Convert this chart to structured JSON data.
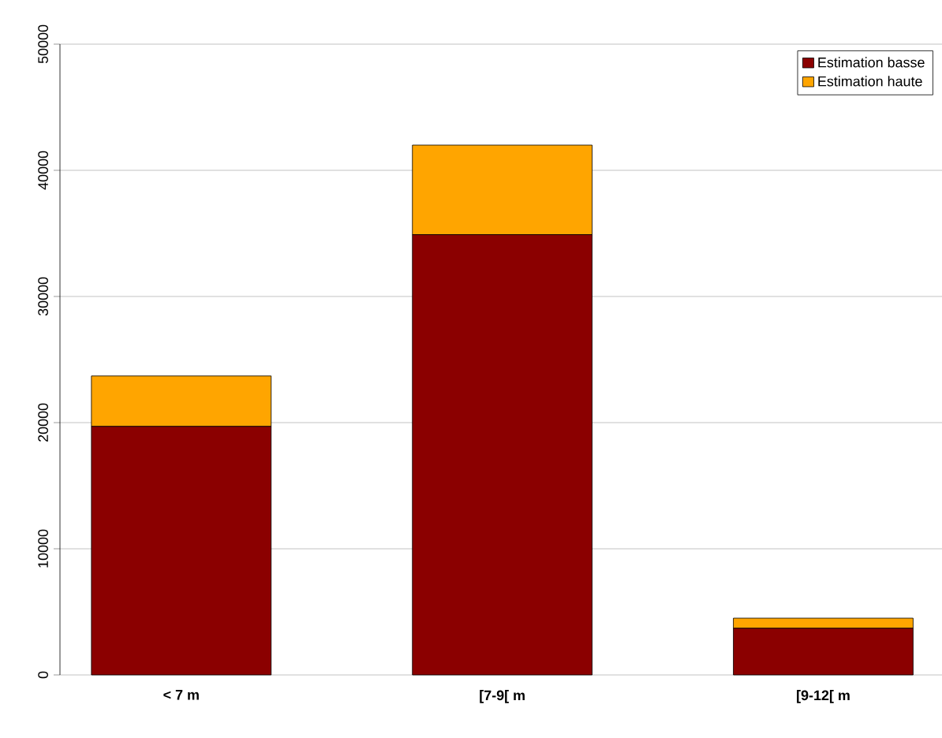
{
  "chart_data": {
    "type": "bar",
    "stacked": true,
    "categories": [
      "< 7 m",
      "[7-9[ m",
      "[9-12[ m"
    ],
    "series": [
      {
        "name": "Estimation basse",
        "color": "#8b0000",
        "values": [
          19700,
          34900,
          3700
        ]
      },
      {
        "name": "Estimation haute",
        "color": "#ffa500",
        "values": [
          4000,
          7100,
          800
        ]
      }
    ],
    "ylim": [
      0,
      50000
    ],
    "yticks": [
      0,
      10000,
      20000,
      30000,
      40000,
      50000
    ],
    "grid": "y",
    "legend": "top right"
  }
}
